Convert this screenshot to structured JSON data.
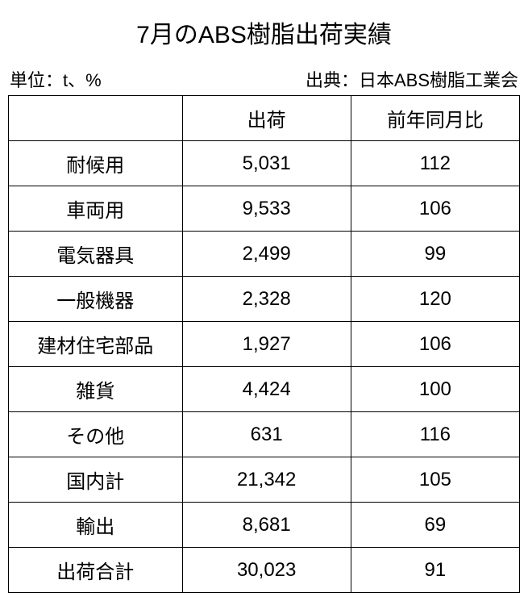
{
  "title": "7月のABS樹脂出荷実績",
  "unit_label": "単位：t、%",
  "source_label": "出典：日本ABS樹脂工業会",
  "table": {
    "columns": [
      "",
      "出荷",
      "前年同月比"
    ],
    "rows": [
      {
        "label": "耐候用",
        "shipment": "5,031",
        "yoy": "112"
      },
      {
        "label": "車両用",
        "shipment": "9,533",
        "yoy": "106"
      },
      {
        "label": "電気器具",
        "shipment": "2,499",
        "yoy": "99"
      },
      {
        "label": "一般機器",
        "shipment": "2,328",
        "yoy": "120"
      },
      {
        "label": "建材住宅部品",
        "shipment": "1,927",
        "yoy": "106"
      },
      {
        "label": "雑貨",
        "shipment": "4,424",
        "yoy": "100"
      },
      {
        "label": "その他",
        "shipment": "631",
        "yoy": "116"
      },
      {
        "label": "国内計",
        "shipment": "21,342",
        "yoy": "105"
      },
      {
        "label": "輸出",
        "shipment": "8,681",
        "yoy": "69"
      },
      {
        "label": "出荷合計",
        "shipment": "30,023",
        "yoy": "91"
      }
    ]
  },
  "colors": {
    "background": "#ffffff",
    "text": "#000000",
    "border": "#000000"
  },
  "typography": {
    "title_fontsize": 30,
    "meta_fontsize": 22,
    "table_fontsize": 24
  }
}
